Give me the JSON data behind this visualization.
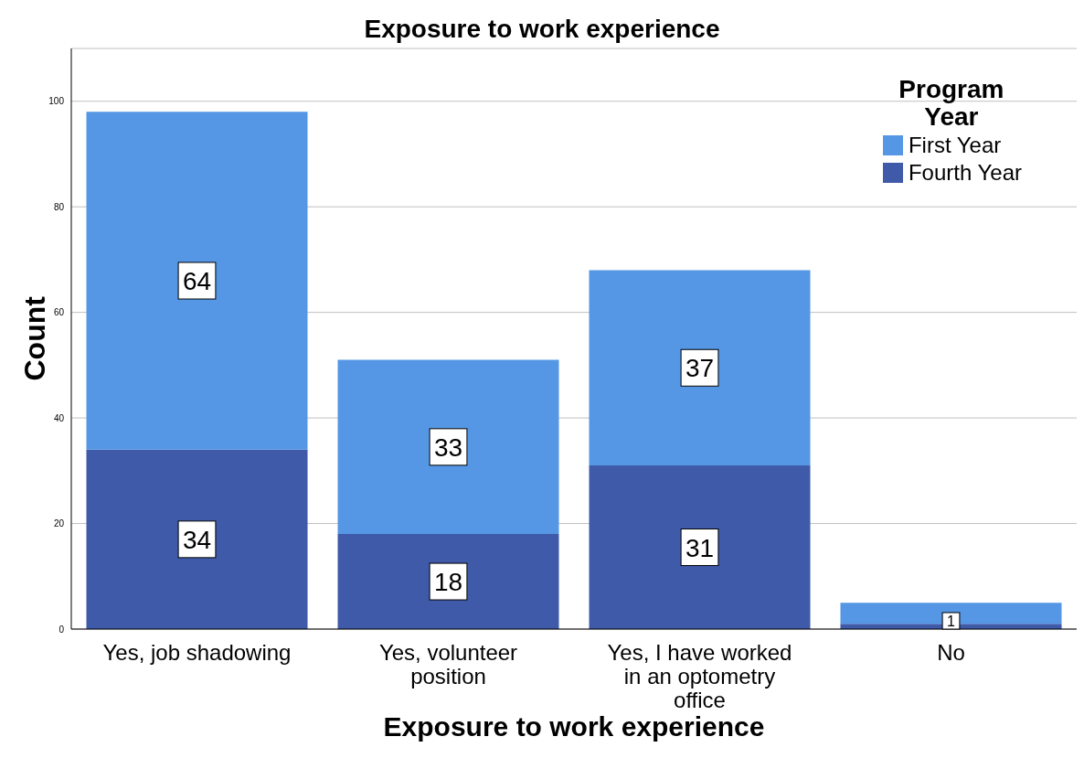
{
  "chart_data": {
    "type": "bar",
    "title": "Exposure to work experience",
    "xlabel": "Exposure to work experience",
    "ylabel": "Count",
    "legend_title": "Program Year",
    "categories": [
      "Yes, job shadowing",
      "Yes, volunteer position",
      "Yes, I have worked in an optometry office",
      "No"
    ],
    "stacked": true,
    "series": [
      {
        "name": "Fourth Year",
        "color": "#3f5aa8",
        "values": [
          34,
          18,
          31,
          1
        ],
        "value_labels": [
          "34",
          "18",
          "31",
          "1"
        ]
      },
      {
        "name": "First Year",
        "color": "#5597e4",
        "values": [
          64,
          33,
          37,
          4
        ],
        "value_labels": [
          "64",
          "33",
          "37",
          null
        ]
      }
    ],
    "ylim": [
      0,
      110
    ],
    "yticks": [
      0,
      20,
      40,
      60,
      80,
      100
    ],
    "grid": "y",
    "legend": "top right"
  }
}
